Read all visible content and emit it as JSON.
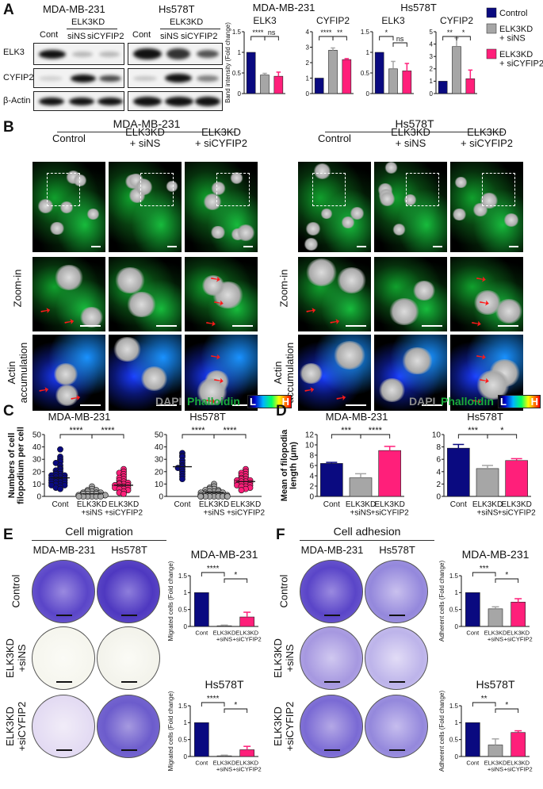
{
  "panels": {
    "A": "A",
    "B": "B",
    "C": "C",
    "D": "D",
    "E": "E",
    "F": "F"
  },
  "panel_a": {
    "cell_lines": [
      "MDA-MB-231",
      "Hs578T"
    ],
    "group_header": "ELK3KD",
    "lanes": [
      "Cont",
      "siNS",
      "siCYFIP2"
    ],
    "rows": [
      "ELK3",
      "CYFIP2",
      "β-Actin"
    ],
    "ylabel": "Band intensity (Fold change)",
    "legend": [
      "Control",
      "ELK3KD\n+ siNS",
      "ELK3KD\n+ siCYFIP2"
    ]
  },
  "panel_b": {
    "cell_lines": [
      "MDA-MB-231",
      "Hs578T"
    ],
    "columns": [
      "Control",
      "ELK3KD\n+ siNS",
      "ELK3KD\n+ siCYFIP2"
    ],
    "rows": [
      "",
      "Zoom-in",
      "Actin\naccumulation"
    ],
    "stain_dapi": "DAPI",
    "stain_phalloidin": "Phalloidin",
    "scale_low": "L",
    "scale_high": "H"
  },
  "panel_e": {
    "title": "Cell migration",
    "cols": [
      "MDA-MB-231",
      "Hs578T"
    ],
    "rows": [
      "Control",
      "ELK3KD\n+siNS",
      "ELK3KD\n+siCYFIP2"
    ]
  },
  "panel_f": {
    "title": "Cell adhesion",
    "cols": [
      "MDA-MB-231",
      "Hs578T"
    ],
    "rows": [
      "Control",
      "ELK3KD\n+siNS",
      "ELK3KD\n+siCYFIP2"
    ]
  },
  "colors": {
    "control": "#0a0a80",
    "sins": "#a6a6a6",
    "sicyfip2": "#ff1f7a"
  },
  "chart_data": [
    {
      "id": "a1",
      "type": "bar",
      "title": "ELK3",
      "super": "MDA-MB-231",
      "categories": [
        "Cont",
        "siNS",
        "siCYFIP2"
      ],
      "values": [
        1.0,
        0.45,
        0.42
      ],
      "errors": [
        0,
        0.04,
        0.1
      ],
      "ylim": [
        0,
        1.5
      ],
      "yticks": [
        0,
        0.5,
        1.0,
        1.5
      ],
      "ylabel": "Band intensity (Fold change)",
      "sig": [
        {
          "a": 0,
          "b": 1,
          "t": "****"
        },
        {
          "a": 1,
          "b": 2,
          "t": "ns"
        }
      ]
    },
    {
      "id": "a2",
      "type": "bar",
      "title": "CYFIP2",
      "categories": [
        "Cont",
        "siNS",
        "siCYFIP2"
      ],
      "values": [
        1.0,
        2.8,
        2.2
      ],
      "errors": [
        0,
        0.15,
        0.06
      ],
      "ylim": [
        0,
        4
      ],
      "yticks": [
        0,
        1,
        2,
        3,
        4
      ],
      "sig": [
        {
          "a": 0,
          "b": 1,
          "t": "****"
        },
        {
          "a": 1,
          "b": 2,
          "t": "**"
        }
      ]
    },
    {
      "id": "a3",
      "type": "bar",
      "title": "ELK3",
      "super": "Hs578T",
      "categories": [
        "Cont",
        "siNS",
        "siCYFIP2"
      ],
      "values": [
        1.0,
        0.6,
        0.55
      ],
      "errors": [
        0,
        0.18,
        0.18
      ],
      "ylim": [
        0,
        1.5
      ],
      "yticks": [
        0,
        0.5,
        1.0,
        1.5
      ],
      "sig": [
        {
          "a": 0,
          "b": 1,
          "t": "*"
        },
        {
          "a": 1,
          "b": 2,
          "t": "ns"
        }
      ]
    },
    {
      "id": "a4",
      "type": "bar",
      "title": "CYFIP2",
      "categories": [
        "Cont",
        "siNS",
        "siCYFIP2"
      ],
      "values": [
        1.0,
        3.8,
        1.2
      ],
      "errors": [
        0,
        0.7,
        0.7
      ],
      "ylim": [
        0,
        5
      ],
      "yticks": [
        0,
        1,
        2,
        3,
        4,
        5
      ],
      "sig": [
        {
          "a": 0,
          "b": 1,
          "t": "**"
        },
        {
          "a": 1,
          "b": 2,
          "t": "*"
        }
      ]
    },
    {
      "id": "c1",
      "type": "scatter",
      "title": "MDA-MB-231",
      "categories": [
        "Cont",
        "ELK3KD\n+siNS",
        "ELK3KD\n+siCYFIP2"
      ],
      "means": [
        15,
        2,
        9
      ],
      "ylim": [
        0,
        50
      ],
      "yticks": [
        0,
        10,
        20,
        30,
        40,
        50
      ],
      "ylabel": "Numbers of cell\nfilopodium per cell",
      "sig": [
        {
          "a": 0,
          "b": 1,
          "t": "****"
        },
        {
          "a": 1,
          "b": 2,
          "t": "****"
        }
      ],
      "points": [
        [
          38,
          32,
          30,
          28,
          27,
          25,
          23,
          22,
          21,
          20,
          19,
          18,
          18,
          17,
          17,
          16,
          16,
          15,
          15,
          14,
          14,
          13,
          13,
          12,
          12,
          11,
          11,
          10,
          10,
          9,
          9,
          8,
          7,
          6
        ],
        [
          8,
          6,
          5,
          5,
          4,
          4,
          3,
          3,
          3,
          2,
          2,
          2,
          2,
          1,
          1,
          1,
          1,
          1,
          0,
          0,
          0,
          0,
          0,
          0
        ],
        [
          22,
          20,
          19,
          18,
          16,
          15,
          14,
          13,
          12,
          11,
          11,
          10,
          10,
          9,
          9,
          8,
          8,
          7,
          7,
          6,
          6,
          5,
          4,
          3,
          2
        ]
      ]
    },
    {
      "id": "c2",
      "type": "scatter",
      "title": "Hs578T",
      "categories": [
        "Cont",
        "ELK3KD\n+siNS",
        "ELK3KD\n+siCYFIP2"
      ],
      "means": [
        24,
        3,
        12
      ],
      "ylim": [
        0,
        50
      ],
      "yticks": [
        0,
        10,
        20,
        30,
        40,
        50
      ],
      "sig": [
        {
          "a": 0,
          "b": 1,
          "t": "****"
        },
        {
          "a": 1,
          "b": 2,
          "t": "****"
        }
      ],
      "points": [
        [
          35,
          33,
          32,
          29,
          27,
          25,
          24,
          23,
          22,
          20,
          18,
          16,
          14
        ],
        [
          10,
          8,
          7,
          6,
          6,
          5,
          5,
          4,
          4,
          4,
          3,
          3,
          3,
          2,
          2,
          2,
          2,
          1,
          1,
          1,
          1,
          0,
          0,
          0,
          0,
          0,
          0,
          0,
          0,
          0
        ],
        [
          22,
          20,
          19,
          18,
          17,
          16,
          15,
          14,
          14,
          13,
          13,
          12,
          12,
          11,
          11,
          10,
          10,
          9,
          9,
          8,
          8,
          7,
          6,
          5
        ]
      ]
    },
    {
      "id": "d1",
      "type": "bar",
      "title": "MDA-MB-231",
      "categories": [
        "Cont",
        "ELK3KD\n+siNS",
        "ELK3KD\n+siCYFIP2"
      ],
      "values": [
        6.4,
        3.6,
        8.9
      ],
      "errors": [
        0.2,
        0.8,
        0.8
      ],
      "ylim": [
        0,
        12
      ],
      "yticks": [
        0,
        2,
        4,
        6,
        8,
        10,
        12
      ],
      "ylabel": "Mean of filopodia\nlength (μm)",
      "sig": [
        {
          "a": 0,
          "b": 1,
          "t": "***"
        },
        {
          "a": 1,
          "b": 2,
          "t": "****"
        }
      ]
    },
    {
      "id": "d2",
      "type": "bar",
      "title": "Hs578T",
      "categories": [
        "Cont",
        "ELK3KD\n+siNS",
        "ELK3KD\n+siCYFIP2"
      ],
      "values": [
        7.8,
        4.5,
        5.8
      ],
      "errors": [
        0.6,
        0.5,
        0.3
      ],
      "ylim": [
        0,
        10
      ],
      "yticks": [
        0,
        2,
        4,
        6,
        8,
        10
      ],
      "sig": [
        {
          "a": 0,
          "b": 1,
          "t": "***"
        },
        {
          "a": 1,
          "b": 2,
          "t": "*"
        }
      ]
    },
    {
      "id": "e1",
      "type": "bar",
      "title": "MDA-MB-231",
      "categories": [
        "Cont",
        "ELK3KD\n+siNS",
        "ELK3KD\n+siCYFIP2"
      ],
      "values": [
        1.0,
        0.02,
        0.28
      ],
      "errors": [
        0,
        0.02,
        0.14
      ],
      "ylim": [
        0,
        1.5
      ],
      "yticks": [
        0,
        0.5,
        1.0,
        1.5
      ],
      "ylabel": "Migrated cells (Fold change)",
      "sig": [
        {
          "a": 0,
          "b": 1,
          "t": "****"
        },
        {
          "a": 1,
          "b": 2,
          "t": "*"
        }
      ]
    },
    {
      "id": "e2",
      "type": "bar",
      "title": "Hs578T",
      "categories": [
        "Cont",
        "ELK3KD\n+siNS",
        "ELK3KD\n+siCYFIP2"
      ],
      "values": [
        1.0,
        0.02,
        0.2
      ],
      "errors": [
        0,
        0.02,
        0.1
      ],
      "ylim": [
        0,
        1.5
      ],
      "yticks": [
        0,
        0.5,
        1.0,
        1.5
      ],
      "ylabel": "Migrated cells (Fold change)",
      "sig": [
        {
          "a": 0,
          "b": 1,
          "t": "****"
        },
        {
          "a": 1,
          "b": 2,
          "t": "*"
        }
      ]
    },
    {
      "id": "f1",
      "type": "bar",
      "title": "MDA-MB-231",
      "categories": [
        "Cont",
        "ELK3KD\n+siNS",
        "ELK3KD\n+siCYFIP2"
      ],
      "values": [
        1.0,
        0.52,
        0.72
      ],
      "errors": [
        0,
        0.06,
        0.1
      ],
      "ylim": [
        0,
        1.5
      ],
      "yticks": [
        0,
        0.5,
        1.0,
        1.5
      ],
      "ylabel": "Adherent cells (Fold change)",
      "sig": [
        {
          "a": 0,
          "b": 1,
          "t": "***"
        },
        {
          "a": 1,
          "b": 2,
          "t": "*"
        }
      ]
    },
    {
      "id": "f2",
      "type": "bar",
      "title": "Hs578T",
      "categories": [
        "Cont",
        "ELK3KD\n+siNS",
        "ELK3KD\n+siCYFIP2"
      ],
      "values": [
        1.0,
        0.34,
        0.71
      ],
      "errors": [
        0,
        0.18,
        0.05
      ],
      "ylim": [
        0,
        1.5
      ],
      "yticks": [
        0,
        0.5,
        1.0,
        1.5
      ],
      "ylabel": "Adherent cells (Fold change)",
      "sig": [
        {
          "a": 0,
          "b": 1,
          "t": "**"
        },
        {
          "a": 1,
          "b": 2,
          "t": "*"
        }
      ]
    }
  ]
}
